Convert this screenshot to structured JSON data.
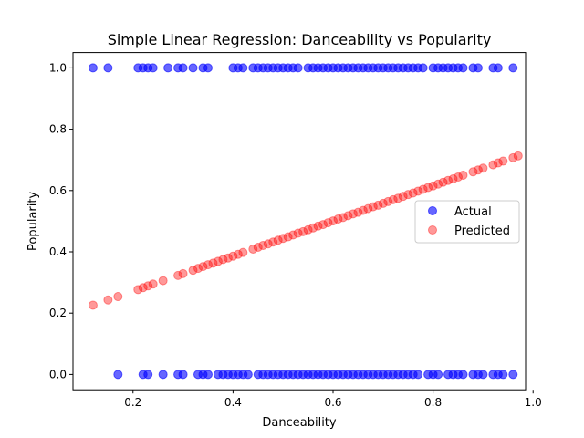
{
  "chart_data": {
    "type": "scatter",
    "title": "Simple Linear Regression: Danceability vs Popularity",
    "xlabel": "Danceability",
    "ylabel": "Popularity",
    "xlim": [
      0.08,
      0.985
    ],
    "ylim": [
      -0.05,
      1.05
    ],
    "xticks": [
      0.2,
      0.4,
      0.6,
      0.8,
      1.0
    ],
    "xtick_labels": [
      "0.2",
      "0.4",
      "0.6",
      "0.8",
      "1.0"
    ],
    "yticks": [
      0.0,
      0.2,
      0.4,
      0.6,
      0.8,
      1.0
    ],
    "ytick_labels": [
      "0.0",
      "0.2",
      "0.4",
      "0.6",
      "0.8",
      "1.0"
    ],
    "grid": false,
    "legend_position": "center-right",
    "series": [
      {
        "name": "Actual",
        "color": "#0000ff",
        "alpha": 0.6,
        "points": [
          {
            "x": 0.12,
            "y": 1
          },
          {
            "x": 0.15,
            "y": 1
          },
          {
            "x": 0.21,
            "y": 1
          },
          {
            "x": 0.22,
            "y": 1
          },
          {
            "x": 0.23,
            "y": 1
          },
          {
            "x": 0.24,
            "y": 1
          },
          {
            "x": 0.27,
            "y": 1
          },
          {
            "x": 0.29,
            "y": 1
          },
          {
            "x": 0.3,
            "y": 1
          },
          {
            "x": 0.32,
            "y": 1
          },
          {
            "x": 0.34,
            "y": 1
          },
          {
            "x": 0.35,
            "y": 1
          },
          {
            "x": 0.4,
            "y": 1
          },
          {
            "x": 0.41,
            "y": 1
          },
          {
            "x": 0.42,
            "y": 1
          },
          {
            "x": 0.44,
            "y": 1
          },
          {
            "x": 0.45,
            "y": 1
          },
          {
            "x": 0.46,
            "y": 1
          },
          {
            "x": 0.47,
            "y": 1
          },
          {
            "x": 0.48,
            "y": 1
          },
          {
            "x": 0.49,
            "y": 1
          },
          {
            "x": 0.5,
            "y": 1
          },
          {
            "x": 0.51,
            "y": 1
          },
          {
            "x": 0.52,
            "y": 1
          },
          {
            "x": 0.53,
            "y": 1
          },
          {
            "x": 0.55,
            "y": 1
          },
          {
            "x": 0.56,
            "y": 1
          },
          {
            "x": 0.57,
            "y": 1
          },
          {
            "x": 0.58,
            "y": 1
          },
          {
            "x": 0.59,
            "y": 1
          },
          {
            "x": 0.6,
            "y": 1
          },
          {
            "x": 0.61,
            "y": 1
          },
          {
            "x": 0.62,
            "y": 1
          },
          {
            "x": 0.63,
            "y": 1
          },
          {
            "x": 0.64,
            "y": 1
          },
          {
            "x": 0.65,
            "y": 1
          },
          {
            "x": 0.66,
            "y": 1
          },
          {
            "x": 0.67,
            "y": 1
          },
          {
            "x": 0.68,
            "y": 1
          },
          {
            "x": 0.69,
            "y": 1
          },
          {
            "x": 0.7,
            "y": 1
          },
          {
            "x": 0.71,
            "y": 1
          },
          {
            "x": 0.72,
            "y": 1
          },
          {
            "x": 0.73,
            "y": 1
          },
          {
            "x": 0.74,
            "y": 1
          },
          {
            "x": 0.75,
            "y": 1
          },
          {
            "x": 0.76,
            "y": 1
          },
          {
            "x": 0.77,
            "y": 1
          },
          {
            "x": 0.78,
            "y": 1
          },
          {
            "x": 0.8,
            "y": 1
          },
          {
            "x": 0.81,
            "y": 1
          },
          {
            "x": 0.82,
            "y": 1
          },
          {
            "x": 0.83,
            "y": 1
          },
          {
            "x": 0.84,
            "y": 1
          },
          {
            "x": 0.85,
            "y": 1
          },
          {
            "x": 0.86,
            "y": 1
          },
          {
            "x": 0.88,
            "y": 1
          },
          {
            "x": 0.89,
            "y": 1
          },
          {
            "x": 0.92,
            "y": 1
          },
          {
            "x": 0.93,
            "y": 1
          },
          {
            "x": 0.96,
            "y": 1
          },
          {
            "x": 0.17,
            "y": 0
          },
          {
            "x": 0.22,
            "y": 0
          },
          {
            "x": 0.23,
            "y": 0
          },
          {
            "x": 0.26,
            "y": 0
          },
          {
            "x": 0.29,
            "y": 0
          },
          {
            "x": 0.3,
            "y": 0
          },
          {
            "x": 0.33,
            "y": 0
          },
          {
            "x": 0.34,
            "y": 0
          },
          {
            "x": 0.35,
            "y": 0
          },
          {
            "x": 0.37,
            "y": 0
          },
          {
            "x": 0.38,
            "y": 0
          },
          {
            "x": 0.39,
            "y": 0
          },
          {
            "x": 0.4,
            "y": 0
          },
          {
            "x": 0.41,
            "y": 0
          },
          {
            "x": 0.42,
            "y": 0
          },
          {
            "x": 0.43,
            "y": 0
          },
          {
            "x": 0.45,
            "y": 0
          },
          {
            "x": 0.46,
            "y": 0
          },
          {
            "x": 0.47,
            "y": 0
          },
          {
            "x": 0.48,
            "y": 0
          },
          {
            "x": 0.49,
            "y": 0
          },
          {
            "x": 0.5,
            "y": 0
          },
          {
            "x": 0.51,
            "y": 0
          },
          {
            "x": 0.52,
            "y": 0
          },
          {
            "x": 0.53,
            "y": 0
          },
          {
            "x": 0.54,
            "y": 0
          },
          {
            "x": 0.55,
            "y": 0
          },
          {
            "x": 0.56,
            "y": 0
          },
          {
            "x": 0.57,
            "y": 0
          },
          {
            "x": 0.58,
            "y": 0
          },
          {
            "x": 0.59,
            "y": 0
          },
          {
            "x": 0.6,
            "y": 0
          },
          {
            "x": 0.61,
            "y": 0
          },
          {
            "x": 0.62,
            "y": 0
          },
          {
            "x": 0.63,
            "y": 0
          },
          {
            "x": 0.64,
            "y": 0
          },
          {
            "x": 0.65,
            "y": 0
          },
          {
            "x": 0.66,
            "y": 0
          },
          {
            "x": 0.67,
            "y": 0
          },
          {
            "x": 0.68,
            "y": 0
          },
          {
            "x": 0.69,
            "y": 0
          },
          {
            "x": 0.7,
            "y": 0
          },
          {
            "x": 0.71,
            "y": 0
          },
          {
            "x": 0.72,
            "y": 0
          },
          {
            "x": 0.73,
            "y": 0
          },
          {
            "x": 0.74,
            "y": 0
          },
          {
            "x": 0.75,
            "y": 0
          },
          {
            "x": 0.76,
            "y": 0
          },
          {
            "x": 0.77,
            "y": 0
          },
          {
            "x": 0.79,
            "y": 0
          },
          {
            "x": 0.8,
            "y": 0
          },
          {
            "x": 0.81,
            "y": 0
          },
          {
            "x": 0.83,
            "y": 0
          },
          {
            "x": 0.84,
            "y": 0
          },
          {
            "x": 0.85,
            "y": 0
          },
          {
            "x": 0.86,
            "y": 0
          },
          {
            "x": 0.88,
            "y": 0
          },
          {
            "x": 0.89,
            "y": 0
          },
          {
            "x": 0.9,
            "y": 0
          },
          {
            "x": 0.92,
            "y": 0
          },
          {
            "x": 0.93,
            "y": 0
          },
          {
            "x": 0.94,
            "y": 0
          },
          {
            "x": 0.96,
            "y": 0
          }
        ]
      },
      {
        "name": "Predicted",
        "color": "#ff0000",
        "alpha": 0.4,
        "slope": 0.573,
        "intercept": 0.157,
        "points": [
          {
            "x": 0.12,
            "y": 0.226
          },
          {
            "x": 0.15,
            "y": 0.243
          },
          {
            "x": 0.17,
            "y": 0.254
          },
          {
            "x": 0.21,
            "y": 0.277
          },
          {
            "x": 0.22,
            "y": 0.283
          },
          {
            "x": 0.23,
            "y": 0.289
          },
          {
            "x": 0.24,
            "y": 0.295
          },
          {
            "x": 0.26,
            "y": 0.306
          },
          {
            "x": 0.29,
            "y": 0.323
          },
          {
            "x": 0.3,
            "y": 0.329
          },
          {
            "x": 0.32,
            "y": 0.34
          },
          {
            "x": 0.33,
            "y": 0.346
          },
          {
            "x": 0.34,
            "y": 0.352
          },
          {
            "x": 0.35,
            "y": 0.358
          },
          {
            "x": 0.36,
            "y": 0.363
          },
          {
            "x": 0.37,
            "y": 0.369
          },
          {
            "x": 0.38,
            "y": 0.375
          },
          {
            "x": 0.39,
            "y": 0.38
          },
          {
            "x": 0.4,
            "y": 0.386
          },
          {
            "x": 0.41,
            "y": 0.392
          },
          {
            "x": 0.42,
            "y": 0.398
          },
          {
            "x": 0.44,
            "y": 0.409
          },
          {
            "x": 0.45,
            "y": 0.415
          },
          {
            "x": 0.46,
            "y": 0.421
          },
          {
            "x": 0.47,
            "y": 0.426
          },
          {
            "x": 0.48,
            "y": 0.432
          },
          {
            "x": 0.49,
            "y": 0.438
          },
          {
            "x": 0.5,
            "y": 0.444
          },
          {
            "x": 0.51,
            "y": 0.449
          },
          {
            "x": 0.52,
            "y": 0.455
          },
          {
            "x": 0.53,
            "y": 0.461
          },
          {
            "x": 0.54,
            "y": 0.466
          },
          {
            "x": 0.55,
            "y": 0.472
          },
          {
            "x": 0.56,
            "y": 0.478
          },
          {
            "x": 0.57,
            "y": 0.484
          },
          {
            "x": 0.58,
            "y": 0.489
          },
          {
            "x": 0.59,
            "y": 0.495
          },
          {
            "x": 0.6,
            "y": 0.501
          },
          {
            "x": 0.61,
            "y": 0.507
          },
          {
            "x": 0.62,
            "y": 0.512
          },
          {
            "x": 0.63,
            "y": 0.518
          },
          {
            "x": 0.64,
            "y": 0.524
          },
          {
            "x": 0.65,
            "y": 0.529
          },
          {
            "x": 0.66,
            "y": 0.535
          },
          {
            "x": 0.67,
            "y": 0.541
          },
          {
            "x": 0.68,
            "y": 0.547
          },
          {
            "x": 0.69,
            "y": 0.552
          },
          {
            "x": 0.7,
            "y": 0.558
          },
          {
            "x": 0.71,
            "y": 0.564
          },
          {
            "x": 0.72,
            "y": 0.57
          },
          {
            "x": 0.73,
            "y": 0.575
          },
          {
            "x": 0.74,
            "y": 0.581
          },
          {
            "x": 0.75,
            "y": 0.587
          },
          {
            "x": 0.76,
            "y": 0.592
          },
          {
            "x": 0.77,
            "y": 0.598
          },
          {
            "x": 0.78,
            "y": 0.604
          },
          {
            "x": 0.79,
            "y": 0.61
          },
          {
            "x": 0.8,
            "y": 0.615
          },
          {
            "x": 0.81,
            "y": 0.621
          },
          {
            "x": 0.82,
            "y": 0.627
          },
          {
            "x": 0.83,
            "y": 0.633
          },
          {
            "x": 0.84,
            "y": 0.638
          },
          {
            "x": 0.85,
            "y": 0.644
          },
          {
            "x": 0.86,
            "y": 0.65
          },
          {
            "x": 0.88,
            "y": 0.661
          },
          {
            "x": 0.89,
            "y": 0.667
          },
          {
            "x": 0.9,
            "y": 0.673
          },
          {
            "x": 0.92,
            "y": 0.684
          },
          {
            "x": 0.93,
            "y": 0.69
          },
          {
            "x": 0.94,
            "y": 0.696
          },
          {
            "x": 0.96,
            "y": 0.707
          },
          {
            "x": 0.97,
            "y": 0.713
          }
        ]
      }
    ]
  }
}
